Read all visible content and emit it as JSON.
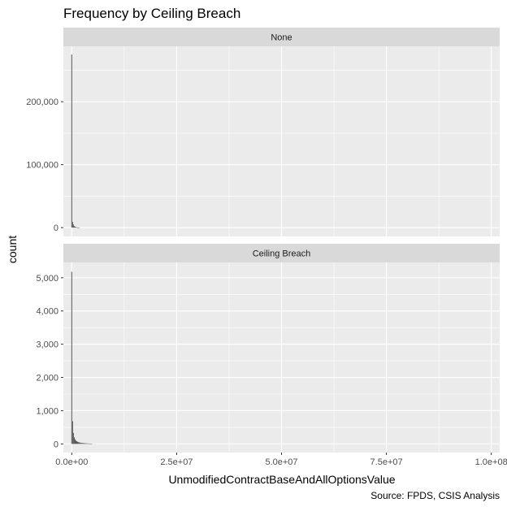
{
  "chart_data": {
    "type": "bar",
    "title": "Frequency by Ceiling Breach",
    "xlabel": "UnmodifiedContractBaseAndAllOptionsValue",
    "ylabel": "count",
    "caption": "Source: FPDS, CSIS Analysis",
    "xlim": [
      -2000000,
      102000000
    ],
    "x_ticks": [
      0,
      25000000,
      50000000,
      75000000,
      100000000
    ],
    "x_tick_labels": [
      "0.0e+00",
      "2.5e+07",
      "5.0e+07",
      "7.5e+07",
      "1.0e+08"
    ],
    "bin_width": 200000,
    "grid": true,
    "bar_color": "#595959",
    "panel_background": "#ebebeb",
    "strip_background": "#d9d9d9",
    "panels": [
      {
        "strip": "None",
        "ylim": [
          -14000,
          288000
        ],
        "y_ticks": [
          0,
          100000,
          200000
        ],
        "y_tick_labels": [
          "0",
          "100,000",
          "200,000"
        ],
        "bins": [
          {
            "x": 0,
            "count": 275000
          },
          {
            "x": 200000,
            "count": 9000
          },
          {
            "x": 400000,
            "count": 5000
          },
          {
            "x": 600000,
            "count": 2500
          },
          {
            "x": 800000,
            "count": 1500
          },
          {
            "x": 1000000,
            "count": 800
          },
          {
            "x": 1200000,
            "count": 500
          },
          {
            "x": 1400000,
            "count": 300
          },
          {
            "x": 1600000,
            "count": 200
          },
          {
            "x": 1800000,
            "count": 150
          }
        ]
      },
      {
        "strip": "Ceiling Breach",
        "ylim": [
          -260,
          5460
        ],
        "y_ticks": [
          0,
          1000,
          2000,
          3000,
          4000,
          5000
        ],
        "y_tick_labels": [
          "0",
          "1,000",
          "2,000",
          "3,000",
          "4,000",
          "5,000"
        ],
        "bins": [
          {
            "x": 0,
            "count": 5180
          },
          {
            "x": 200000,
            "count": 680
          },
          {
            "x": 400000,
            "count": 330
          },
          {
            "x": 600000,
            "count": 200
          },
          {
            "x": 800000,
            "count": 140
          },
          {
            "x": 1000000,
            "count": 100
          },
          {
            "x": 1200000,
            "count": 80
          },
          {
            "x": 1400000,
            "count": 65
          },
          {
            "x": 1600000,
            "count": 55
          },
          {
            "x": 1800000,
            "count": 45
          },
          {
            "x": 2000000,
            "count": 40
          },
          {
            "x": 2200000,
            "count": 35
          },
          {
            "x": 2400000,
            "count": 30
          },
          {
            "x": 2600000,
            "count": 28
          },
          {
            "x": 2800000,
            "count": 25
          },
          {
            "x": 3000000,
            "count": 22
          },
          {
            "x": 3200000,
            "count": 20
          },
          {
            "x": 3400000,
            "count": 18
          },
          {
            "x": 3600000,
            "count": 16
          },
          {
            "x": 3800000,
            "count": 14
          },
          {
            "x": 4000000,
            "count": 12
          },
          {
            "x": 4200000,
            "count": 10
          },
          {
            "x": 4400000,
            "count": 8
          },
          {
            "x": 4600000,
            "count": 6
          },
          {
            "x": 4800000,
            "count": 4
          }
        ]
      }
    ]
  }
}
